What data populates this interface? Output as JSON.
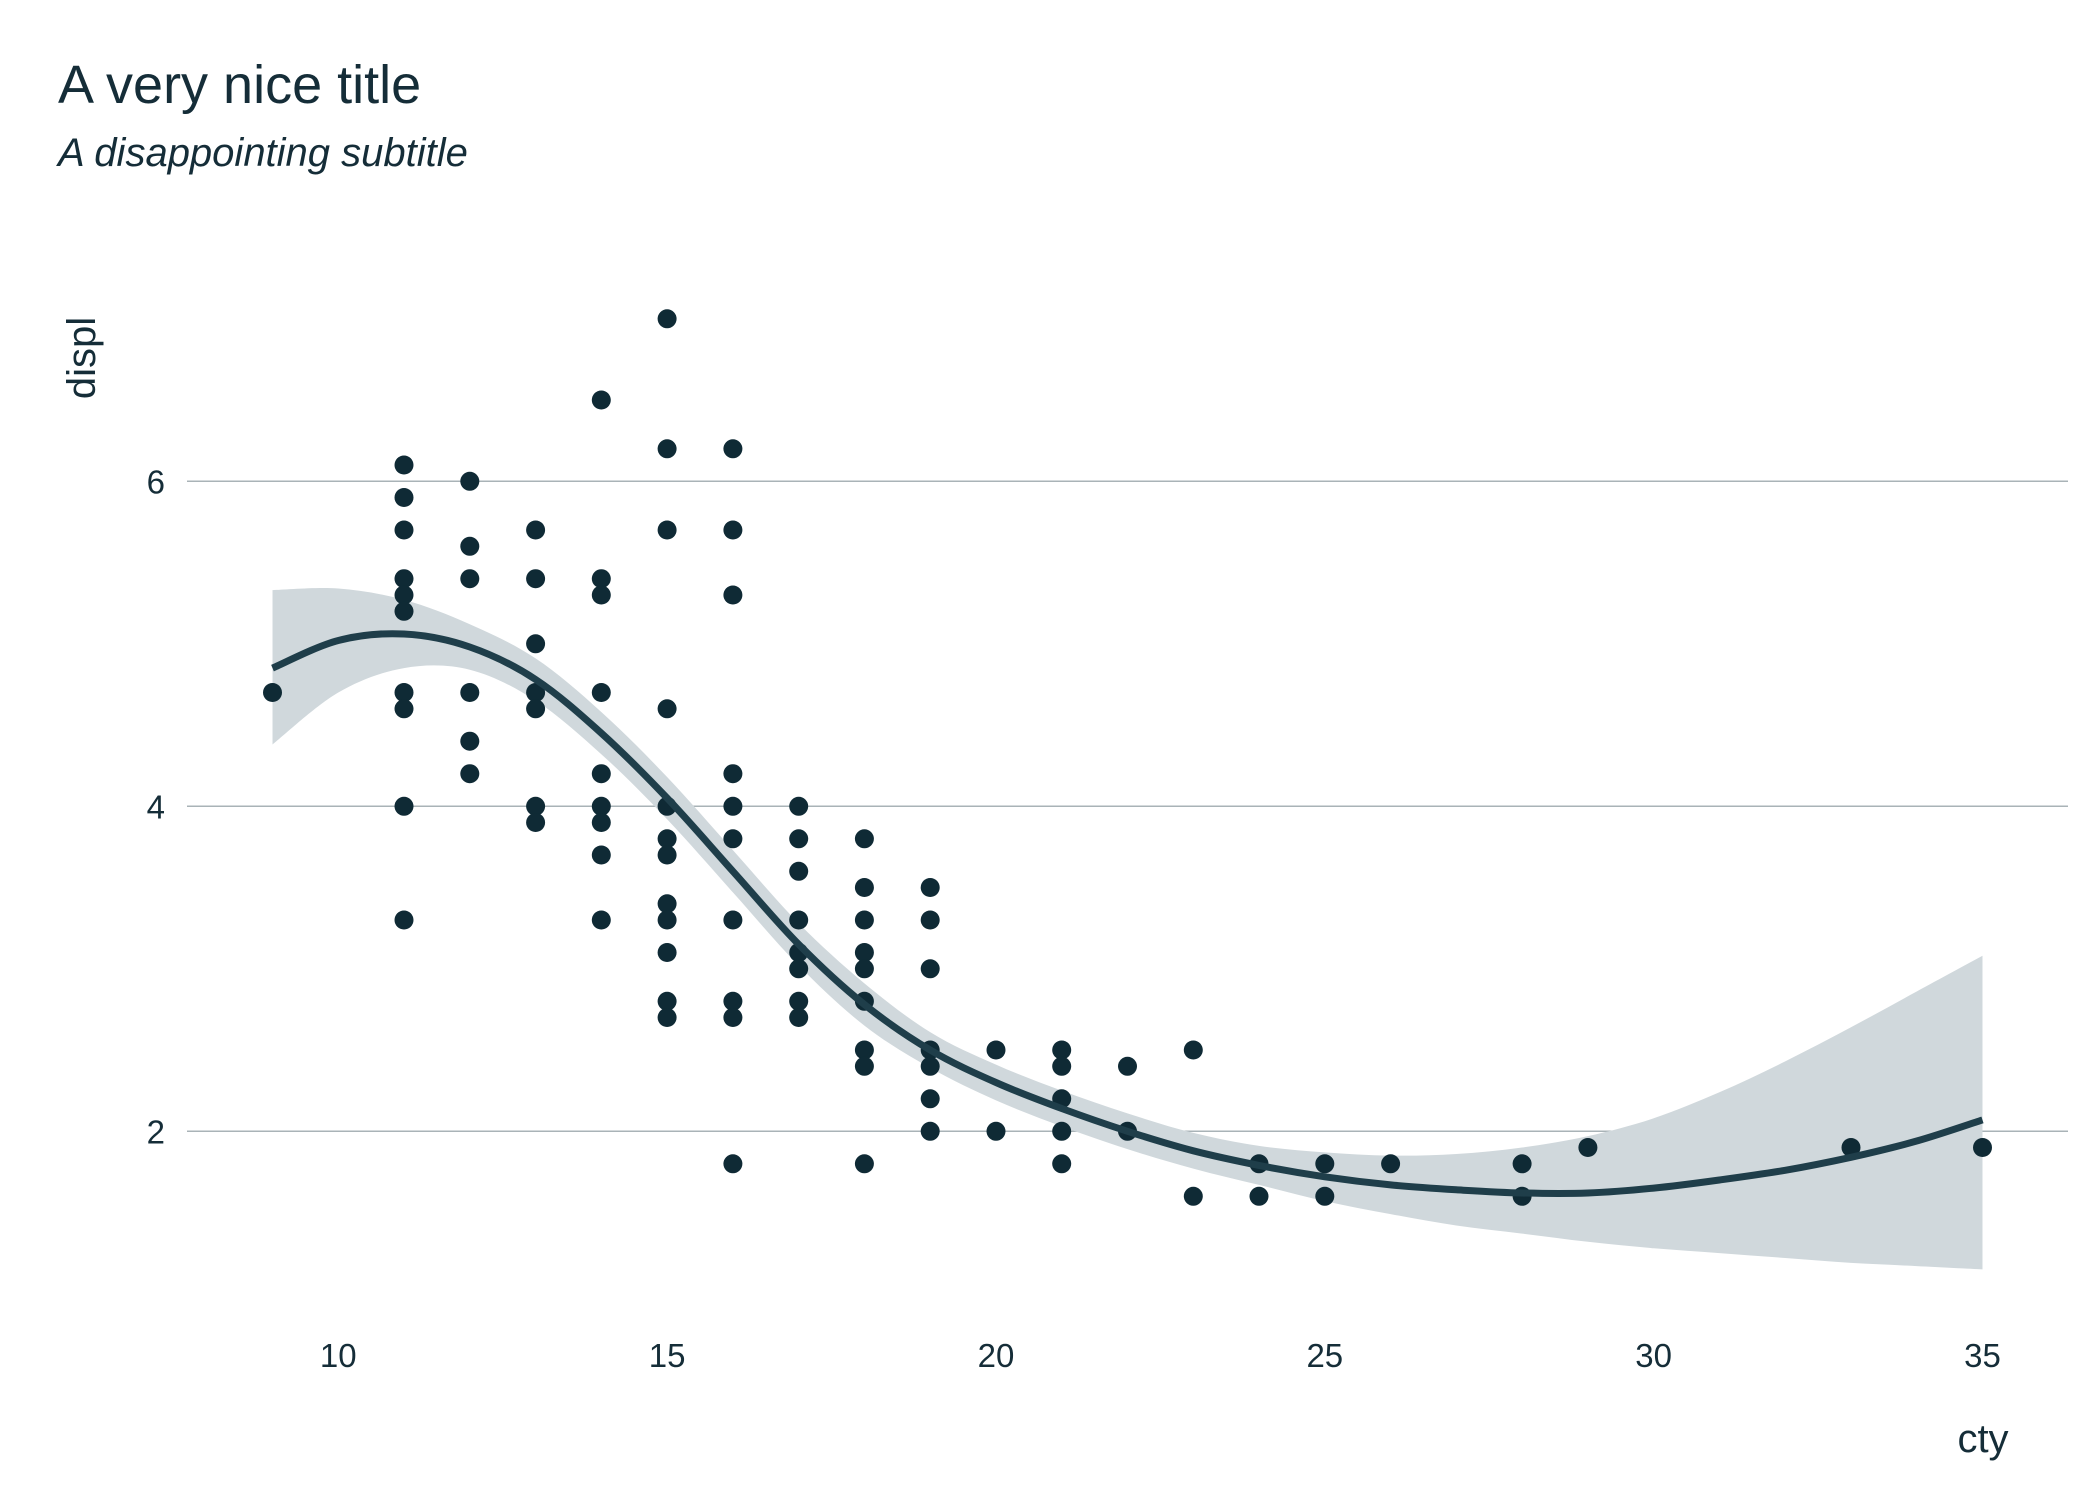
{
  "chart_data": {
    "type": "scatter",
    "title": "A very nice title",
    "subtitle": "A disappointing subtitle",
    "xlabel": "cty",
    "ylabel": "displ",
    "xlim": [
      7.7,
      36.3
    ],
    "ylim": [
      0.9,
      7.3
    ],
    "x_ticks": [
      10,
      15,
      20,
      25,
      30,
      35
    ],
    "y_ticks": [
      2,
      4,
      6
    ],
    "grid": "horizontal major only",
    "legend": "none",
    "colors": {
      "points": "#0f2a35",
      "line": "#1f3e4a",
      "band": "#d0d8dc",
      "grid": "#a9b3b7",
      "text": "#152d38"
    },
    "points": [
      [
        9,
        4.7
      ],
      [
        11,
        6.1
      ],
      [
        11,
        5.9
      ],
      [
        11,
        5.7
      ],
      [
        11,
        5.4
      ],
      [
        11,
        5.3
      ],
      [
        11,
        5.2
      ],
      [
        11,
        4.7
      ],
      [
        11,
        4.6
      ],
      [
        11,
        4.0
      ],
      [
        11,
        3.3
      ],
      [
        12,
        6.0
      ],
      [
        12,
        5.6
      ],
      [
        12,
        5.4
      ],
      [
        12,
        4.7
      ],
      [
        12,
        4.4
      ],
      [
        12,
        4.2
      ],
      [
        13,
        5.7
      ],
      [
        13,
        5.4
      ],
      [
        13,
        5.0
      ],
      [
        13,
        4.7
      ],
      [
        13,
        4.6
      ],
      [
        13,
        4.0
      ],
      [
        13,
        3.9
      ],
      [
        14,
        6.5
      ],
      [
        14,
        5.4
      ],
      [
        14,
        5.3
      ],
      [
        14,
        4.7
      ],
      [
        14,
        4.2
      ],
      [
        14,
        4.0
      ],
      [
        14,
        3.9
      ],
      [
        14,
        3.7
      ],
      [
        14,
        3.3
      ],
      [
        15,
        7.0
      ],
      [
        15,
        6.2
      ],
      [
        15,
        5.7
      ],
      [
        15,
        4.6
      ],
      [
        15,
        4.0
      ],
      [
        15,
        3.8
      ],
      [
        15,
        3.7
      ],
      [
        15,
        3.4
      ],
      [
        15,
        3.3
      ],
      [
        15,
        3.1
      ],
      [
        15,
        2.8
      ],
      [
        15,
        2.7
      ],
      [
        16,
        6.2
      ],
      [
        16,
        5.7
      ],
      [
        16,
        5.3
      ],
      [
        16,
        4.2
      ],
      [
        16,
        4.0
      ],
      [
        16,
        3.8
      ],
      [
        16,
        3.3
      ],
      [
        16,
        2.8
      ],
      [
        16,
        2.7
      ],
      [
        16,
        1.8
      ],
      [
        17,
        4.0
      ],
      [
        17,
        3.8
      ],
      [
        17,
        3.6
      ],
      [
        17,
        3.3
      ],
      [
        17,
        3.1
      ],
      [
        17,
        3.0
      ],
      [
        17,
        2.8
      ],
      [
        17,
        2.7
      ],
      [
        18,
        3.8
      ],
      [
        18,
        3.5
      ],
      [
        18,
        3.3
      ],
      [
        18,
        3.1
      ],
      [
        18,
        3.0
      ],
      [
        18,
        2.8
      ],
      [
        18,
        2.5
      ],
      [
        18,
        2.4
      ],
      [
        18,
        1.8
      ],
      [
        19,
        3.5
      ],
      [
        19,
        3.3
      ],
      [
        19,
        3.0
      ],
      [
        19,
        2.5
      ],
      [
        19,
        2.4
      ],
      [
        19,
        2.2
      ],
      [
        19,
        2.0
      ],
      [
        20,
        2.5
      ],
      [
        20,
        2.0
      ],
      [
        21,
        2.5
      ],
      [
        21,
        2.4
      ],
      [
        21,
        2.2
      ],
      [
        21,
        2.0
      ],
      [
        21,
        1.8
      ],
      [
        22,
        2.4
      ],
      [
        22,
        2.0
      ],
      [
        23,
        2.5
      ],
      [
        23,
        1.6
      ],
      [
        24,
        1.8
      ],
      [
        24,
        1.6
      ],
      [
        25,
        1.8
      ],
      [
        25,
        1.6
      ],
      [
        26,
        1.8
      ],
      [
        28,
        1.8
      ],
      [
        28,
        1.6
      ],
      [
        29,
        1.9
      ],
      [
        33,
        1.9
      ],
      [
        35,
        1.9
      ]
    ],
    "smooth": {
      "method": "loess",
      "x": [
        9,
        10,
        11,
        12,
        13,
        14,
        15,
        16,
        17,
        18,
        19,
        20,
        21,
        22,
        23,
        24,
        25,
        26,
        27,
        28,
        29,
        30,
        31,
        32,
        33,
        34,
        35
      ],
      "y": [
        4.85,
        5.02,
        5.06,
        4.98,
        4.78,
        4.45,
        4.05,
        3.6,
        3.15,
        2.78,
        2.5,
        2.3,
        2.14,
        2.0,
        1.88,
        1.79,
        1.72,
        1.67,
        1.64,
        1.62,
        1.62,
        1.65,
        1.7,
        1.76,
        1.84,
        1.94,
        2.07
      ],
      "upper": [
        5.33,
        5.34,
        5.27,
        5.12,
        4.91,
        4.58,
        4.18,
        3.73,
        3.28,
        2.91,
        2.61,
        2.41,
        2.25,
        2.11,
        1.99,
        1.91,
        1.87,
        1.85,
        1.86,
        1.9,
        1.97,
        2.08,
        2.24,
        2.43,
        2.64,
        2.86,
        3.08
      ],
      "lower": [
        4.38,
        4.7,
        4.85,
        4.84,
        4.65,
        4.32,
        3.92,
        3.47,
        3.02,
        2.65,
        2.39,
        2.19,
        2.03,
        1.89,
        1.77,
        1.67,
        1.57,
        1.49,
        1.42,
        1.37,
        1.32,
        1.28,
        1.25,
        1.22,
        1.19,
        1.17,
        1.15
      ]
    }
  }
}
